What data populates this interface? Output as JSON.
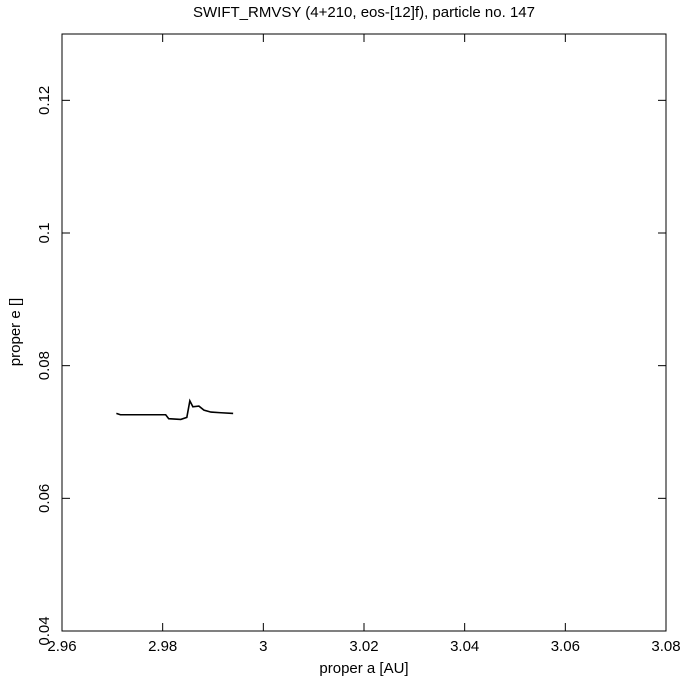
{
  "chart_data": {
    "type": "line",
    "title": "SWIFT_RMVSY (4+210, eos-[12]f), particle no. 147",
    "x_label": "proper a [AU]",
    "y_label": "proper e []",
    "x": [
      2.9708,
      2.9716,
      2.9806,
      2.9812,
      2.9836,
      2.9848,
      2.9854,
      2.986,
      2.9872,
      2.9882,
      2.9896,
      2.9916,
      2.994
    ],
    "values": [
      0.0728,
      0.0726,
      0.0726,
      0.072,
      0.0719,
      0.0722,
      0.0747,
      0.0738,
      0.0739,
      0.0733,
      0.073,
      0.0729,
      0.0728
    ],
    "color": "#000000",
    "xlim": [
      2.96,
      3.08
    ],
    "xticks": [
      2.96,
      2.98,
      3,
      3.02,
      3.04,
      3.06,
      3.08
    ],
    "ylim": [
      0.04,
      0.13
    ],
    "yticks": [
      0.04,
      0.06,
      0.08,
      0.1,
      0.12
    ]
  }
}
